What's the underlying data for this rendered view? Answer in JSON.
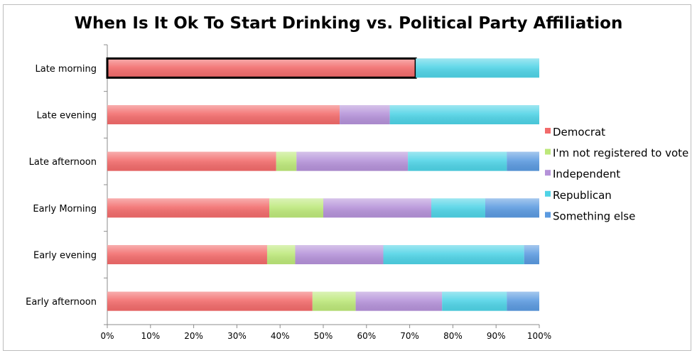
{
  "chart_data": {
    "type": "bar",
    "orientation": "horizontal",
    "stacked": "percent",
    "title": "When Is It Ok To Start Drinking vs. Political Party Affiliation",
    "xlabel": "",
    "ylabel": "",
    "xlim": [
      0,
      100
    ],
    "x_ticks": [
      "0%",
      "10%",
      "20%",
      "30%",
      "40%",
      "50%",
      "60%",
      "70%",
      "80%",
      "90%",
      "100%"
    ],
    "grid": false,
    "legend_position": "right",
    "categories": [
      "Late morning",
      "Late evening",
      "Late afternoon",
      "Early Morning",
      "Early evening",
      "Early afternoon"
    ],
    "highlighted_bar": {
      "category": "Late morning",
      "series": "Democrat"
    },
    "series": [
      {
        "name": "Democrat",
        "color": "#f26b6b",
        "values": [
          71.4,
          53.8,
          39.1,
          37.5,
          37.0,
          47.5
        ]
      },
      {
        "name": "I'm not registered to vote",
        "color": "#bde87a",
        "values": [
          0,
          0,
          4.7,
          12.5,
          6.5,
          10.0
        ]
      },
      {
        "name": "Independent",
        "color": "#b592d9",
        "values": [
          0,
          11.6,
          25.8,
          25.0,
          20.4,
          20.0
        ]
      },
      {
        "name": "Republican",
        "color": "#4fd3e6",
        "values": [
          28.6,
          34.6,
          22.9,
          12.5,
          32.6,
          15.0
        ]
      },
      {
        "name": "Something else",
        "color": "#5b9ae0",
        "values": [
          0,
          0,
          7.5,
          12.5,
          3.5,
          7.5
        ]
      }
    ]
  }
}
